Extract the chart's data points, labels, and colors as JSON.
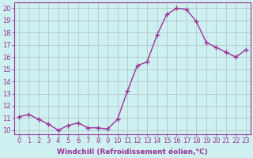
{
  "x": [
    0,
    1,
    2,
    3,
    4,
    5,
    6,
    7,
    8,
    9,
    10,
    11,
    12,
    13,
    14,
    15,
    16,
    17,
    18,
    19,
    20,
    21,
    22,
    23
  ],
  "y": [
    11.1,
    11.3,
    10.9,
    10.5,
    10.0,
    10.4,
    10.6,
    10.2,
    10.2,
    10.1,
    10.9,
    13.2,
    15.3,
    15.6,
    17.8,
    19.5,
    20.0,
    19.9,
    18.9,
    17.2,
    16.8,
    16.4,
    16.0,
    16.6
  ],
  "line_color": "#993399",
  "marker": "+",
  "marker_size": 4,
  "bg_color": "#cff0f0",
  "grid_color": "#b0c8c8",
  "xlabel": "Windchill (Refroidissement éolien,°C)",
  "ylabel_values": [
    10,
    11,
    12,
    13,
    14,
    15,
    16,
    17,
    18,
    19,
    20
  ],
  "ylim": [
    9.7,
    20.5
  ],
  "xlim": [
    -0.5,
    23.5
  ],
  "xlabel_fontsize": 6.5,
  "tick_fontsize": 6.0,
  "linewidth": 1.0,
  "spine_color": "#993399"
}
